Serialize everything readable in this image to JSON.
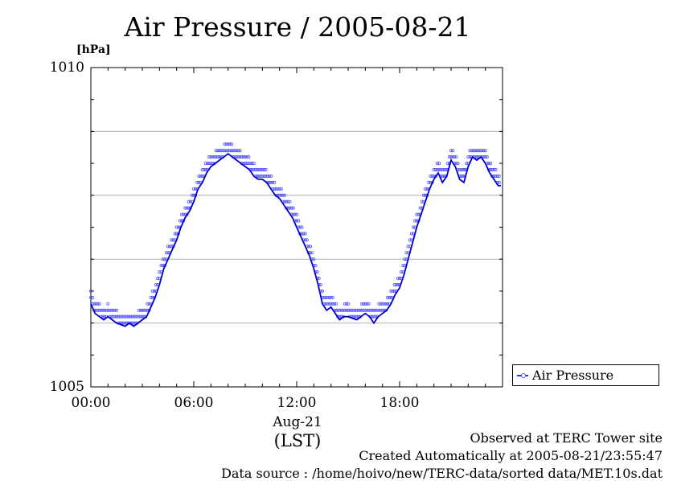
{
  "chart_data": {
    "type": "line",
    "title": "Air Pressure / 2005-08-21",
    "ylabel": "[hPa]",
    "xlabel": "Aug-21",
    "xlabel2": "(LST)",
    "ylim": [
      1005,
      1010
    ],
    "y_ticks": [
      "1005",
      "1010"
    ],
    "y_gridlines": [
      1006,
      1007,
      1008,
      1009
    ],
    "xlim": [
      0,
      23.9
    ],
    "x_ticks": [
      {
        "hour": 0,
        "label": "00:00"
      },
      {
        "hour": 6,
        "label": "06:00"
      },
      {
        "hour": 12,
        "label": "12:00"
      },
      {
        "hour": 18,
        "label": "18:00"
      }
    ],
    "grid": "horizontal",
    "legend": {
      "placement": "bottom-right",
      "entries": [
        "Air Pressure"
      ]
    },
    "series": [
      {
        "name": "Air Pressure",
        "color": "#0000cc",
        "point_color": "#5555ff",
        "x": [
          0.0,
          0.25,
          0.5,
          0.75,
          1.0,
          1.5,
          2.0,
          2.25,
          2.5,
          2.75,
          3.0,
          3.25,
          3.5,
          3.75,
          4.0,
          4.25,
          4.5,
          4.75,
          5.0,
          5.25,
          5.5,
          5.75,
          6.0,
          6.25,
          6.5,
          6.75,
          7.0,
          7.25,
          7.5,
          7.75,
          8.0,
          8.25,
          8.5,
          8.75,
          9.0,
          9.25,
          9.5,
          9.75,
          10.0,
          10.25,
          10.5,
          10.75,
          11.0,
          11.25,
          11.5,
          11.75,
          12.0,
          12.25,
          12.5,
          12.75,
          13.0,
          13.25,
          13.5,
          13.75,
          14.0,
          14.25,
          14.5,
          14.75,
          15.0,
          15.5,
          16.0,
          16.25,
          16.5,
          16.75,
          17.0,
          17.25,
          17.5,
          17.75,
          18.0,
          18.25,
          18.5,
          18.75,
          19.0,
          19.25,
          19.5,
          19.75,
          20.0,
          20.25,
          20.5,
          20.75,
          21.0,
          21.25,
          21.5,
          21.75,
          22.0,
          22.25,
          22.5,
          22.75,
          23.0,
          23.25,
          23.5,
          23.75,
          23.9
        ],
        "values": [
          1006.3,
          1006.15,
          1006.1,
          1006.05,
          1006.1,
          1006.0,
          1005.95,
          1006.0,
          1005.95,
          1006.0,
          1006.05,
          1006.1,
          1006.25,
          1006.4,
          1006.6,
          1006.85,
          1007.0,
          1007.15,
          1007.3,
          1007.5,
          1007.65,
          1007.75,
          1007.9,
          1008.1,
          1008.2,
          1008.35,
          1008.45,
          1008.5,
          1008.55,
          1008.6,
          1008.65,
          1008.6,
          1008.55,
          1008.5,
          1008.45,
          1008.4,
          1008.3,
          1008.25,
          1008.25,
          1008.2,
          1008.1,
          1008.0,
          1007.95,
          1007.85,
          1007.75,
          1007.65,
          1007.5,
          1007.35,
          1007.2,
          1007.05,
          1006.85,
          1006.6,
          1006.3,
          1006.2,
          1006.25,
          1006.15,
          1006.05,
          1006.1,
          1006.1,
          1006.05,
          1006.15,
          1006.1,
          1006.0,
          1006.1,
          1006.15,
          1006.2,
          1006.3,
          1006.45,
          1006.55,
          1006.75,
          1007.0,
          1007.25,
          1007.5,
          1007.7,
          1007.9,
          1008.1,
          1008.25,
          1008.35,
          1008.2,
          1008.3,
          1008.55,
          1008.45,
          1008.25,
          1008.2,
          1008.45,
          1008.6,
          1008.55,
          1008.6,
          1008.5,
          1008.35,
          1008.25,
          1008.15,
          1008.15
        ]
      }
    ]
  },
  "footer": {
    "site": "Observed at TERC Tower site",
    "created": "Created Automatically at 2005-08-21/23:55:47",
    "source": "Data source : /home/hoivo/new/TERC-data/sorted  data/MET.10s.dat"
  }
}
